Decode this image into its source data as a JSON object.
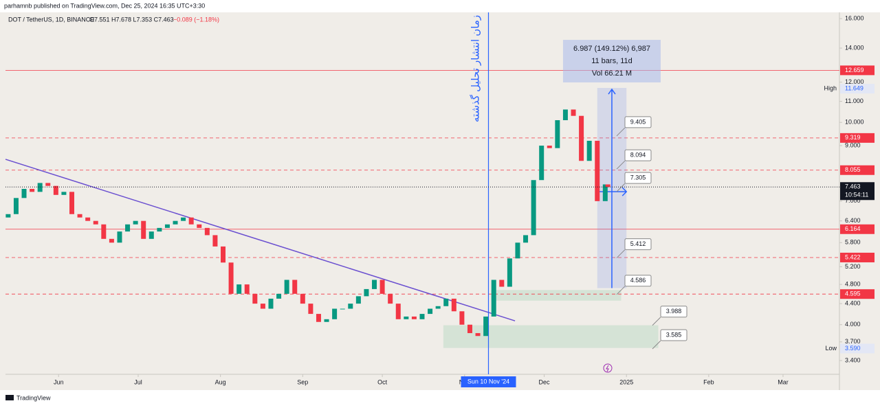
{
  "header": {
    "publisher": "parhamnb published on TradingView.com, Dec 25, 2024 16:35 UTC+3:30",
    "symbol": "DOT / TetherUS, 1D, BINANCE",
    "ohlc": "O7.551 H7.678 L7.353 C7.463",
    "change": "−0.089 (−1.18%)"
  },
  "chart_data": {
    "type": "candlestick",
    "log_scale": true,
    "grid": false,
    "up_color": "#089981",
    "down_color": "#f23645",
    "x": [
      "2024-05-13",
      "2024-05-16",
      "2024-05-19",
      "2024-05-22",
      "2024-05-25",
      "2024-05-28",
      "2024-05-31",
      "2024-06-03",
      "2024-06-06",
      "2024-06-09",
      "2024-06-12",
      "2024-06-15",
      "2024-06-18",
      "2024-06-21",
      "2024-06-24",
      "2024-06-27",
      "2024-06-30",
      "2024-07-03",
      "2024-07-06",
      "2024-07-09",
      "2024-07-12",
      "2024-07-15",
      "2024-07-18",
      "2024-07-21",
      "2024-07-24",
      "2024-07-27",
      "2024-07-30",
      "2024-08-02",
      "2024-08-05",
      "2024-08-08",
      "2024-08-11",
      "2024-08-14",
      "2024-08-17",
      "2024-08-20",
      "2024-08-23",
      "2024-08-26",
      "2024-08-29",
      "2024-09-01",
      "2024-09-04",
      "2024-09-07",
      "2024-09-10",
      "2024-09-13",
      "2024-09-16",
      "2024-09-19",
      "2024-09-22",
      "2024-09-25",
      "2024-09-28",
      "2024-10-01",
      "2024-10-04",
      "2024-10-07",
      "2024-10-10",
      "2024-10-13",
      "2024-10-16",
      "2024-10-19",
      "2024-10-22",
      "2024-10-25",
      "2024-10-28",
      "2024-10-31",
      "2024-11-03",
      "2024-11-06",
      "2024-11-09",
      "2024-11-12",
      "2024-11-15",
      "2024-11-18",
      "2024-11-21",
      "2024-11-24",
      "2024-11-27",
      "2024-11-30",
      "2024-12-03",
      "2024-12-06",
      "2024-12-09",
      "2024-12-12",
      "2024-12-15",
      "2024-12-18",
      "2024-12-21",
      "2024-12-24",
      "2024-12-25"
    ],
    "open": [
      6.5,
      6.6,
      7.1,
      7.4,
      7.3,
      7.6,
      7.5,
      7.2,
      7.3,
      6.6,
      6.5,
      6.4,
      6.3,
      5.9,
      5.8,
      6.1,
      6.3,
      6.4,
      5.9,
      6.1,
      6.2,
      6.3,
      6.4,
      6.5,
      6.3,
      6.2,
      6.0,
      5.7,
      5.3,
      4.6,
      4.8,
      4.6,
      4.4,
      4.3,
      4.5,
      4.6,
      4.9,
      4.6,
      4.4,
      4.2,
      4.05,
      4.1,
      4.3,
      4.3,
      4.4,
      4.55,
      4.7,
      4.9,
      4.6,
      4.4,
      4.1,
      4.15,
      4.1,
      4.2,
      4.3,
      4.35,
      4.5,
      4.25,
      4.0,
      3.85,
      3.8,
      4.15,
      4.9,
      4.75,
      5.4,
      5.8,
      6.0,
      7.7,
      9.0,
      8.9,
      10.1,
      10.6,
      10.3,
      8.4,
      9.2,
      7.0,
      7.551
    ],
    "high": {
      "label": "High",
      "value": 11.649
    },
    "low": {
      "label": "Low",
      "value": 3.59,
      "value_label": "3.590"
    },
    "close": [
      6.6,
      7.1,
      7.4,
      7.3,
      7.6,
      7.5,
      7.2,
      7.3,
      6.6,
      6.5,
      6.4,
      6.3,
      5.9,
      5.8,
      6.1,
      6.3,
      6.4,
      5.9,
      6.1,
      6.2,
      6.3,
      6.4,
      6.5,
      6.3,
      6.2,
      6.0,
      5.7,
      5.3,
      4.6,
      4.8,
      4.6,
      4.4,
      4.3,
      4.5,
      4.6,
      4.9,
      4.6,
      4.4,
      4.2,
      4.05,
      4.1,
      4.3,
      4.3,
      4.4,
      4.55,
      4.7,
      4.9,
      4.6,
      4.4,
      4.1,
      4.15,
      4.1,
      4.2,
      4.3,
      4.35,
      4.5,
      4.25,
      4.0,
      3.85,
      3.8,
      4.15,
      4.9,
      4.75,
      5.4,
      5.8,
      6.0,
      7.7,
      9.0,
      8.9,
      10.1,
      10.6,
      10.3,
      8.4,
      9.2,
      7.0,
      7.551,
      7.463
    ],
    "xlim": [
      "2024-05-12",
      "2025-03-22"
    ],
    "xticks": [
      {
        "value": "2024-06-01",
        "label": "Jun"
      },
      {
        "value": "2024-07-01",
        "label": "Jul"
      },
      {
        "value": "2024-08-01",
        "label": "Aug"
      },
      {
        "value": "2024-09-01",
        "label": "Sep"
      },
      {
        "value": "2024-10-01",
        "label": "Oct"
      },
      {
        "value": "2024-11-01",
        "label": "Nov"
      },
      {
        "value": "2024-12-01",
        "label": "Dec"
      },
      {
        "value": "2025-01-01",
        "label": "2025"
      },
      {
        "value": "2025-02-01",
        "label": "Feb"
      },
      {
        "value": "2025-03-01",
        "label": "Mar"
      }
    ],
    "ylim": [
      3.245,
      16.46
    ],
    "yticks": [
      {
        "value": 16,
        "label": "16.000"
      },
      {
        "value": 14,
        "label": "14.000"
      },
      {
        "value": 12,
        "label": "12.000"
      },
      {
        "value": 11,
        "label": "11.000"
      },
      {
        "value": 10,
        "label": "10.000"
      },
      {
        "value": 9,
        "label": "9.000"
      },
      {
        "value": 7,
        "label": "7.000"
      },
      {
        "value": 6.4,
        "label": "6.400"
      },
      {
        "value": 5.8,
        "label": "5.800"
      },
      {
        "value": 5.2,
        "label": "5.200"
      },
      {
        "value": 4.8,
        "label": "4.800"
      },
      {
        "value": 4.4,
        "label": "4.400"
      },
      {
        "value": 4,
        "label": "4.000"
      },
      {
        "value": 3.7,
        "label": "3.700"
      },
      {
        "value": 3.4,
        "label": "3.400"
      }
    ],
    "levels": [
      {
        "value": 12.659,
        "style": "solid"
      },
      {
        "value": 9.319,
        "style": "dashed"
      },
      {
        "value": 8.055,
        "style": "dashed"
      },
      {
        "value": 6.164,
        "style": "solid"
      },
      {
        "value": 5.422,
        "style": "dashed"
      },
      {
        "value": 4.595,
        "style": "dashed"
      }
    ],
    "level_color": "#f23645",
    "last_price": {
      "value": 7.463,
      "countdown": "10:54:11"
    },
    "trendline": {
      "x": [
        "2024-05-12",
        "2024-11-20"
      ],
      "y": [
        8.46,
        4.07
      ],
      "color": "#6a4fd0"
    },
    "marker": {
      "x": "2024-11-10",
      "label": "Sun 10 Nov '24",
      "color": "#2962ff"
    },
    "annotation": "زمان انتشار تحلیل گذشته",
    "zones": [
      {
        "x": [
          "2024-11-11",
          "2024-12-30"
        ],
        "y": [
          4.46,
          4.68
        ]
      },
      {
        "x": [
          "2024-10-24",
          "2025-01-13"
        ],
        "y": [
          3.6,
          3.99
        ]
      }
    ],
    "measure": {
      "x": [
        "2024-12-21",
        "2025-01-01"
      ],
      "y": [
        4.72,
        11.69
      ],
      "mid": 7.305,
      "lines": [
        "6.987 (149.12%) 6,987",
        "11 bars, 11d",
        "Vol 66.21 M"
      ]
    },
    "callouts": [
      9.405,
      8.094,
      7.305,
      5.412,
      4.586,
      3.988,
      3.585
    ]
  },
  "footer": "TradingView"
}
